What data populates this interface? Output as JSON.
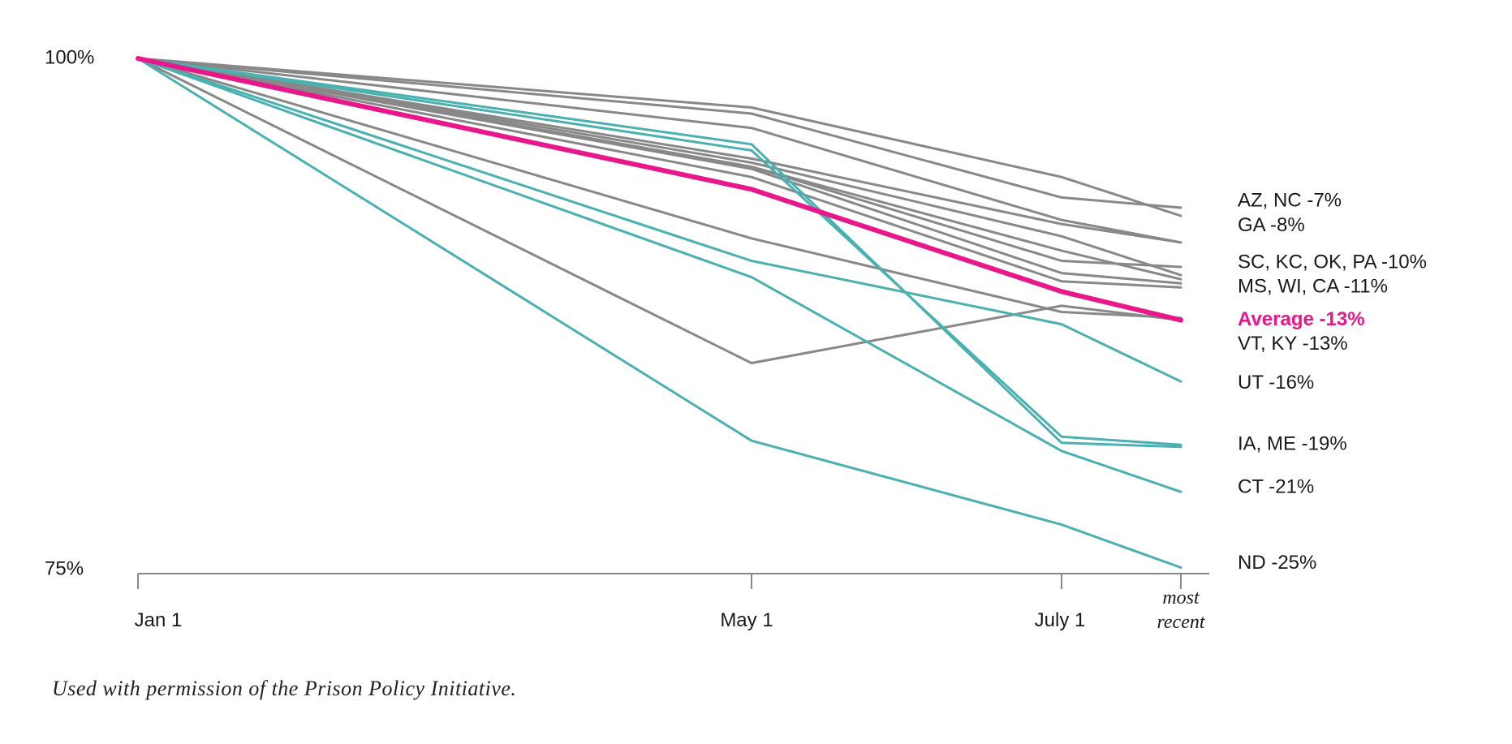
{
  "chart_data": {
    "type": "line",
    "x_categories": [
      "Jan  1",
      "May 1",
      "July 1",
      "most recent"
    ],
    "y_axis": {
      "ylim": [
        75,
        100
      ],
      "ticks": [
        {
          "value": 100,
          "label": "100%"
        },
        {
          "value": 75,
          "label": "75%"
        }
      ]
    },
    "colors": {
      "gray": "#888888",
      "teal": "#4ab0b0",
      "average": "#e8178a",
      "axis": "#888888"
    },
    "series": [
      {
        "group": "gray",
        "values": [
          100,
          97.6,
          94.2,
          92.3
        ]
      },
      {
        "group": "gray",
        "values": [
          100,
          97.3,
          93.2,
          92.7
        ]
      },
      {
        "group": "gray",
        "values": [
          100,
          96.6,
          92.1,
          91.0
        ]
      },
      {
        "group": "gray",
        "values": [
          100,
          95.1,
          91.9,
          91.0
        ]
      },
      {
        "group": "gray",
        "values": [
          100,
          94.7,
          90.1,
          89.8
        ]
      },
      {
        "group": "gray",
        "values": [
          100,
          94.6,
          89.5,
          89.0
        ]
      },
      {
        "group": "gray",
        "values": [
          100,
          94.9,
          91.3,
          89.4
        ]
      },
      {
        "group": "gray",
        "values": [
          100,
          94.7,
          90.6,
          89.2
        ]
      },
      {
        "group": "gray",
        "values": [
          100,
          94.2,
          89.1,
          88.8
        ]
      },
      {
        "group": "gray",
        "values": [
          100,
          91.2,
          87.6,
          87.3
        ]
      },
      {
        "group": "gray",
        "values": [
          100,
          85.1,
          87.9,
          87.2
        ]
      },
      {
        "group": "teal",
        "values": [
          100,
          95.8,
          81.2,
          81.0
        ]
      },
      {
        "group": "teal",
        "values": [
          100,
          95.5,
          81.5,
          81.1
        ]
      },
      {
        "group": "teal",
        "values": [
          100,
          90.1,
          87.0,
          84.2
        ]
      },
      {
        "group": "teal",
        "values": [
          100,
          89.3,
          80.8,
          78.8
        ]
      },
      {
        "group": "teal",
        "values": [
          100,
          81.3,
          77.2,
          75.1
        ]
      }
    ],
    "average": {
      "name": "Average -13%",
      "values": [
        100,
        93.6,
        88.6,
        87.2
      ]
    },
    "end_labels": [
      {
        "text": "AZ, NC -7%",
        "value": 93.0,
        "highlight": false
      },
      {
        "text": "GA -8%",
        "value": 91.8,
        "highlight": false
      },
      {
        "text": "SC, KC, OK, PA -10%",
        "value": 90.0,
        "highlight": false
      },
      {
        "text": "MS, WI, CA -11%",
        "value": 88.8,
        "highlight": false
      },
      {
        "text": "Average -13%",
        "value": 87.2,
        "highlight": true
      },
      {
        "text": "VT, KY -13%",
        "value": 86.0,
        "highlight": false
      },
      {
        "text": "UT -16%",
        "value": 84.1,
        "highlight": false
      },
      {
        "text": "IA, ME -19%",
        "value": 81.1,
        "highlight": false
      },
      {
        "text": "CT -21%",
        "value": 79.0,
        "highlight": false
      },
      {
        "text": "ND -25%",
        "value": 75.3,
        "highlight": false
      }
    ]
  },
  "footnote": "Used with permission of the Prison Policy Initiative."
}
